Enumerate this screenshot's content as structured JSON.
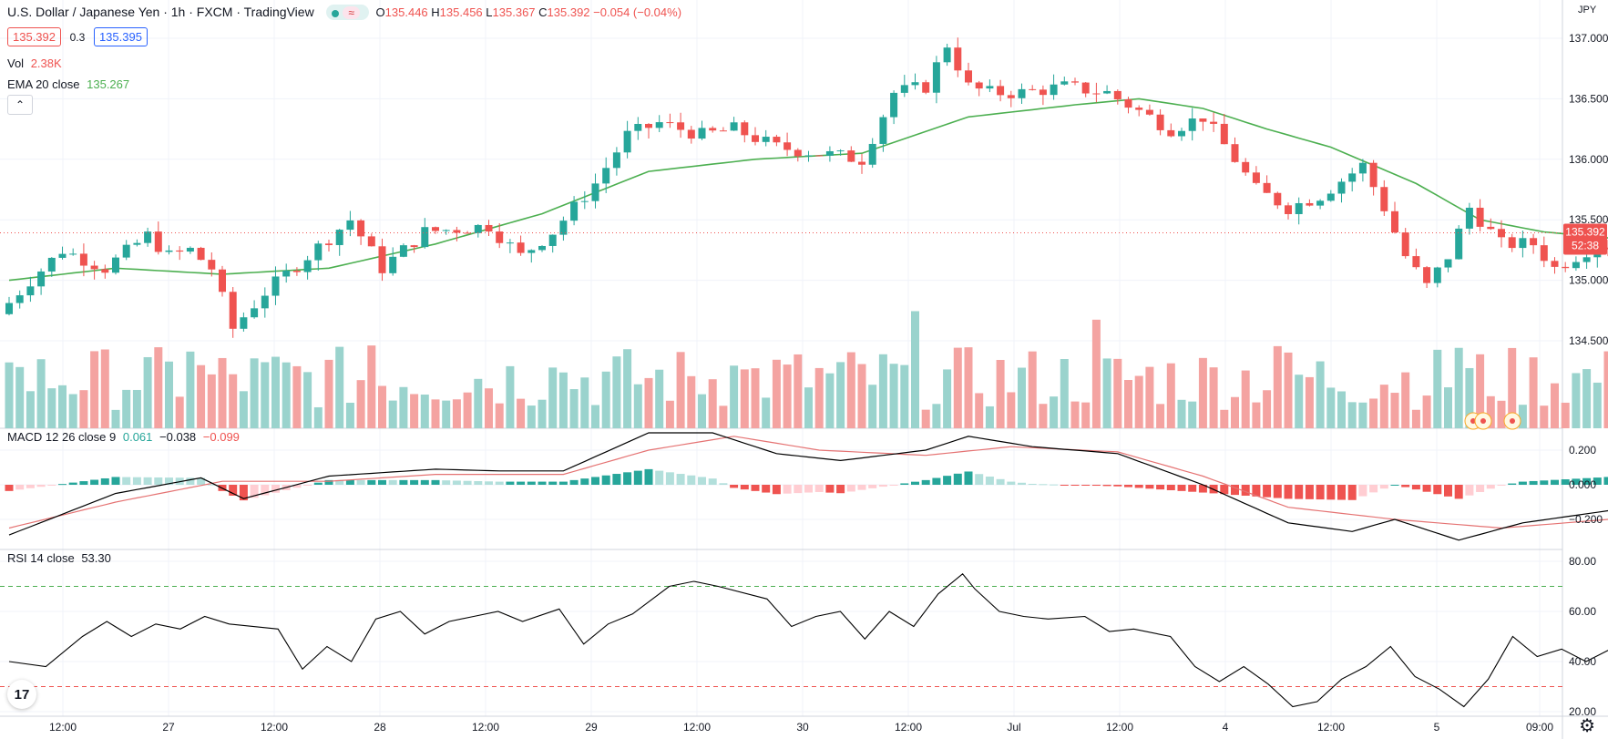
{
  "header": {
    "symbol": "U.S. Dollar / Japanese Yen · 1h · FXCM · TradingView",
    "o_label": "O",
    "o_value": "135.446",
    "h_label": "H",
    "h_value": "135.456",
    "l_label": "L",
    "l_value": "135.367",
    "c_label": "C",
    "c_value": "135.392",
    "change": "−0.054 (−0.04%)",
    "bid": "135.392",
    "spread": "0.3",
    "ask": "135.395",
    "badge_symbol": "≈"
  },
  "indicators": {
    "vol_label": "Vol",
    "vol_value": "2.38K",
    "ema_label": "EMA 20 close",
    "ema_value": "135.267",
    "macd_label": "MACD 12 26 close 9",
    "macd_hist": "0.061",
    "macd_line": "−0.038",
    "macd_signal": "−0.099",
    "rsi_label": "RSI 14 close",
    "rsi_value": "53.30"
  },
  "price_scale": {
    "currency": "JPY",
    "last_price": "135.392",
    "countdown": "52:38",
    "ticks": [
      "137.000",
      "136.500",
      "136.000",
      "135.500",
      "135.000",
      "134.500"
    ]
  },
  "macd_scale": {
    "ticks": [
      "0.200",
      "0.000",
      "−0.200"
    ]
  },
  "rsi_scale": {
    "ticks": [
      "80.00",
      "60.00",
      "40.00",
      "20.00"
    ]
  },
  "time_axis": {
    "labels": [
      "12:00",
      "27",
      "12:00",
      "28",
      "12:00",
      "29",
      "12:00",
      "30",
      "12:00",
      "Jul",
      "12:00",
      "4",
      "12:00",
      "5",
      "09:00"
    ]
  },
  "colors": {
    "up": "#26a69a",
    "down": "#ef5350",
    "vol_up": "#9ad3cd",
    "vol_down": "#f4a3a1",
    "ema": "#4caf50",
    "macd": "#000000",
    "signal": "#e57373",
    "grid": "#f0f3fa",
    "rsi_upper": "#4caf50",
    "rsi_lower": "#ef5350"
  },
  "icons": {
    "collapse": "chevron-up-icon",
    "settings": "gear-icon",
    "logo": "tradingview-logo"
  },
  "logo_text": "17",
  "chart_data": {
    "type": "candlestick",
    "title": "U.S. Dollar / Japanese Yen · 1h · FXCM",
    "ylim": [
      134.1,
      137.25
    ],
    "anchors": [
      {
        "i": 0,
        "p": 134.72
      },
      {
        "i": 3,
        "p": 135.0
      },
      {
        "i": 6,
        "p": 135.25
      },
      {
        "i": 10,
        "p": 135.1
      },
      {
        "i": 14,
        "p": 135.37
      },
      {
        "i": 16,
        "p": 135.2
      },
      {
        "i": 18,
        "p": 135.25
      },
      {
        "i": 20,
        "p": 135.1
      },
      {
        "i": 22,
        "p": 134.6
      },
      {
        "i": 25,
        "p": 134.9
      },
      {
        "i": 29,
        "p": 135.2
      },
      {
        "i": 33,
        "p": 135.5
      },
      {
        "i": 36,
        "p": 135.1
      },
      {
        "i": 40,
        "p": 135.4
      },
      {
        "i": 46,
        "p": 135.45
      },
      {
        "i": 49,
        "p": 135.2
      },
      {
        "i": 52,
        "p": 135.4
      },
      {
        "i": 56,
        "p": 135.8
      },
      {
        "i": 59,
        "p": 136.2
      },
      {
        "i": 62,
        "p": 136.3
      },
      {
        "i": 66,
        "p": 136.2
      },
      {
        "i": 69,
        "p": 136.25
      },
      {
        "i": 73,
        "p": 136.1
      },
      {
        "i": 77,
        "p": 136.05
      },
      {
        "i": 81,
        "p": 136.0
      },
      {
        "i": 84,
        "p": 136.55
      },
      {
        "i": 87,
        "p": 136.6
      },
      {
        "i": 89,
        "p": 136.95
      },
      {
        "i": 91,
        "p": 136.6
      },
      {
        "i": 93,
        "p": 136.55
      },
      {
        "i": 96,
        "p": 136.55
      },
      {
        "i": 100,
        "p": 136.6
      },
      {
        "i": 104,
        "p": 136.55
      },
      {
        "i": 107,
        "p": 136.4
      },
      {
        "i": 110,
        "p": 136.25
      },
      {
        "i": 113,
        "p": 136.35
      },
      {
        "i": 116,
        "p": 136.0
      },
      {
        "i": 118,
        "p": 135.75
      },
      {
        "i": 121,
        "p": 135.6
      },
      {
        "i": 124,
        "p": 135.7
      },
      {
        "i": 128,
        "p": 135.95
      },
      {
        "i": 130,
        "p": 135.6
      },
      {
        "i": 132,
        "p": 135.2
      },
      {
        "i": 134,
        "p": 134.95
      },
      {
        "i": 136,
        "p": 135.2
      },
      {
        "i": 138,
        "p": 135.6
      },
      {
        "i": 141,
        "p": 135.3
      },
      {
        "i": 144,
        "p": 135.3
      },
      {
        "i": 146,
        "p": 135.1
      },
      {
        "i": 150,
        "p": 135.3
      },
      {
        "i": 154,
        "p": 135.25
      },
      {
        "i": 157,
        "p": 134.95
      },
      {
        "i": 159,
        "p": 135.05
      },
      {
        "i": 161,
        "p": 135.35
      },
      {
        "i": 163,
        "p": 135.45
      },
      {
        "i": 164,
        "p": 135.39
      }
    ],
    "ema": [
      [
        0,
        135.0
      ],
      [
        10,
        135.1
      ],
      [
        20,
        135.05
      ],
      [
        30,
        135.1
      ],
      [
        40,
        135.3
      ],
      [
        50,
        135.55
      ],
      [
        60,
        135.9
      ],
      [
        70,
        136.0
      ],
      [
        80,
        136.05
      ],
      [
        90,
        136.35
      ],
      [
        100,
        136.45
      ],
      [
        106,
        136.5
      ],
      [
        112,
        136.42
      ],
      [
        118,
        136.25
      ],
      [
        124,
        136.1
      ],
      [
        128,
        135.95
      ],
      [
        132,
        135.8
      ],
      [
        138,
        135.5
      ],
      [
        144,
        135.4
      ],
      [
        150,
        135.35
      ],
      [
        156,
        135.2
      ],
      [
        160,
        135.2
      ],
      [
        164,
        135.27
      ]
    ],
    "macd": [
      [
        0,
        -0.29
      ],
      [
        10,
        -0.05
      ],
      [
        18,
        0.04
      ],
      [
        22,
        -0.08
      ],
      [
        30,
        0.05
      ],
      [
        40,
        0.09
      ],
      [
        46,
        0.08
      ],
      [
        52,
        0.08
      ],
      [
        60,
        0.3
      ],
      [
        66,
        0.3
      ],
      [
        72,
        0.18
      ],
      [
        78,
        0.14
      ],
      [
        86,
        0.2
      ],
      [
        90,
        0.28
      ],
      [
        96,
        0.22
      ],
      [
        104,
        0.18
      ],
      [
        112,
        0.0
      ],
      [
        120,
        -0.22
      ],
      [
        126,
        -0.27
      ],
      [
        130,
        -0.2
      ],
      [
        136,
        -0.32
      ],
      [
        142,
        -0.22
      ],
      [
        150,
        -0.15
      ],
      [
        158,
        -0.17
      ],
      [
        164,
        -0.04
      ]
    ],
    "signal": [
      [
        0,
        -0.25
      ],
      [
        10,
        -0.1
      ],
      [
        20,
        0.02
      ],
      [
        30,
        0.02
      ],
      [
        40,
        0.06
      ],
      [
        52,
        0.06
      ],
      [
        60,
        0.2
      ],
      [
        68,
        0.28
      ],
      [
        76,
        0.2
      ],
      [
        86,
        0.17
      ],
      [
        94,
        0.22
      ],
      [
        104,
        0.19
      ],
      [
        112,
        0.05
      ],
      [
        120,
        -0.13
      ],
      [
        130,
        -0.2
      ],
      [
        140,
        -0.25
      ],
      [
        150,
        -0.2
      ],
      [
        158,
        -0.16
      ],
      [
        164,
        -0.1
      ]
    ],
    "rsi": [
      [
        0,
        40
      ],
      [
        3,
        38
      ],
      [
        6,
        50
      ],
      [
        8,
        56
      ],
      [
        10,
        50
      ],
      [
        12,
        55
      ],
      [
        14,
        53
      ],
      [
        16,
        58
      ],
      [
        18,
        55
      ],
      [
        22,
        53
      ],
      [
        24,
        37
      ],
      [
        26,
        46
      ],
      [
        28,
        40
      ],
      [
        30,
        57
      ],
      [
        32,
        60
      ],
      [
        34,
        51
      ],
      [
        36,
        56
      ],
      [
        38,
        58
      ],
      [
        40,
        60
      ],
      [
        42,
        56
      ],
      [
        45,
        61
      ],
      [
        47,
        47
      ],
      [
        49,
        55
      ],
      [
        51,
        59
      ],
      [
        54,
        70
      ],
      [
        56,
        72
      ],
      [
        58,
        70
      ],
      [
        62,
        65
      ],
      [
        64,
        54
      ],
      [
        66,
        58
      ],
      [
        68,
        60
      ],
      [
        70,
        49
      ],
      [
        72,
        60
      ],
      [
        74,
        54
      ],
      [
        76,
        67
      ],
      [
        78,
        75
      ],
      [
        79,
        69
      ],
      [
        81,
        60
      ],
      [
        83,
        58
      ],
      [
        85,
        57
      ],
      [
        88,
        58
      ],
      [
        90,
        52
      ],
      [
        92,
        53
      ],
      [
        95,
        50
      ],
      [
        97,
        38
      ],
      [
        99,
        32
      ],
      [
        101,
        38
      ],
      [
        103,
        31
      ],
      [
        105,
        22
      ],
      [
        107,
        24
      ],
      [
        109,
        33
      ],
      [
        111,
        38
      ],
      [
        113,
        46
      ],
      [
        115,
        34
      ],
      [
        117,
        29
      ],
      [
        119,
        22
      ],
      [
        121,
        33
      ],
      [
        123,
        50
      ],
      [
        125,
        42
      ],
      [
        127,
        45
      ],
      [
        129,
        40
      ],
      [
        131,
        45
      ],
      [
        133,
        44
      ],
      [
        135,
        35
      ],
      [
        137,
        46
      ],
      [
        139,
        57
      ],
      [
        141,
        55
      ],
      [
        143,
        53
      ]
    ],
    "rsi_levels": [
      70,
      30
    ],
    "macd_ylim": [
      -0.37,
      0.27
    ],
    "rsi_ylim": [
      17,
      85
    ]
  }
}
